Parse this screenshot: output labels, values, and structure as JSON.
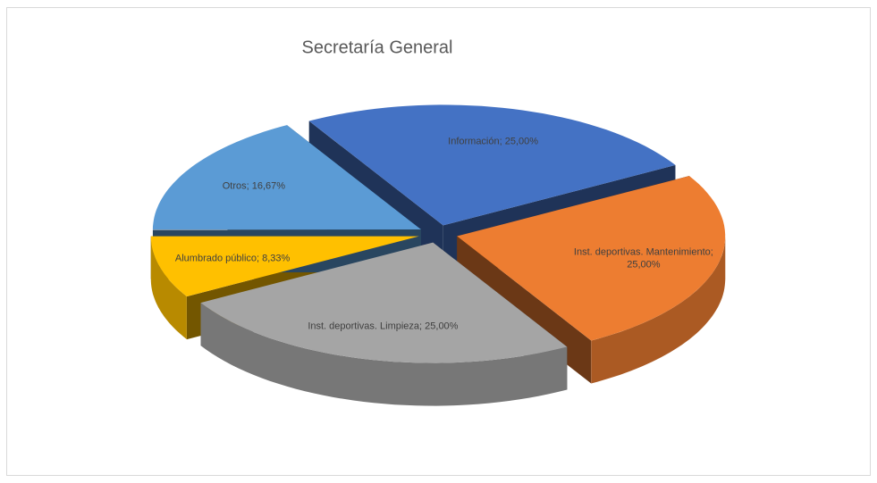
{
  "chart_data": {
    "type": "pie3d",
    "title": "Secretaría General",
    "labels": [
      [
        "Información; 25,00%"
      ],
      [
        "Inst. deportivas. Mantenimiento;",
        "25,00%"
      ],
      [
        "Inst. deportivas. Limpieza; 25,00%"
      ],
      [
        "Alumbrado público; 8,33%"
      ],
      [
        "Otros; 16,67%"
      ]
    ],
    "values": [
      25,
      25,
      25,
      8.33,
      16.67
    ],
    "colors": [
      "#4472c4",
      "#ed7d31",
      "#a5a5a5",
      "#ffc000",
      "#5b9bd5"
    ]
  }
}
